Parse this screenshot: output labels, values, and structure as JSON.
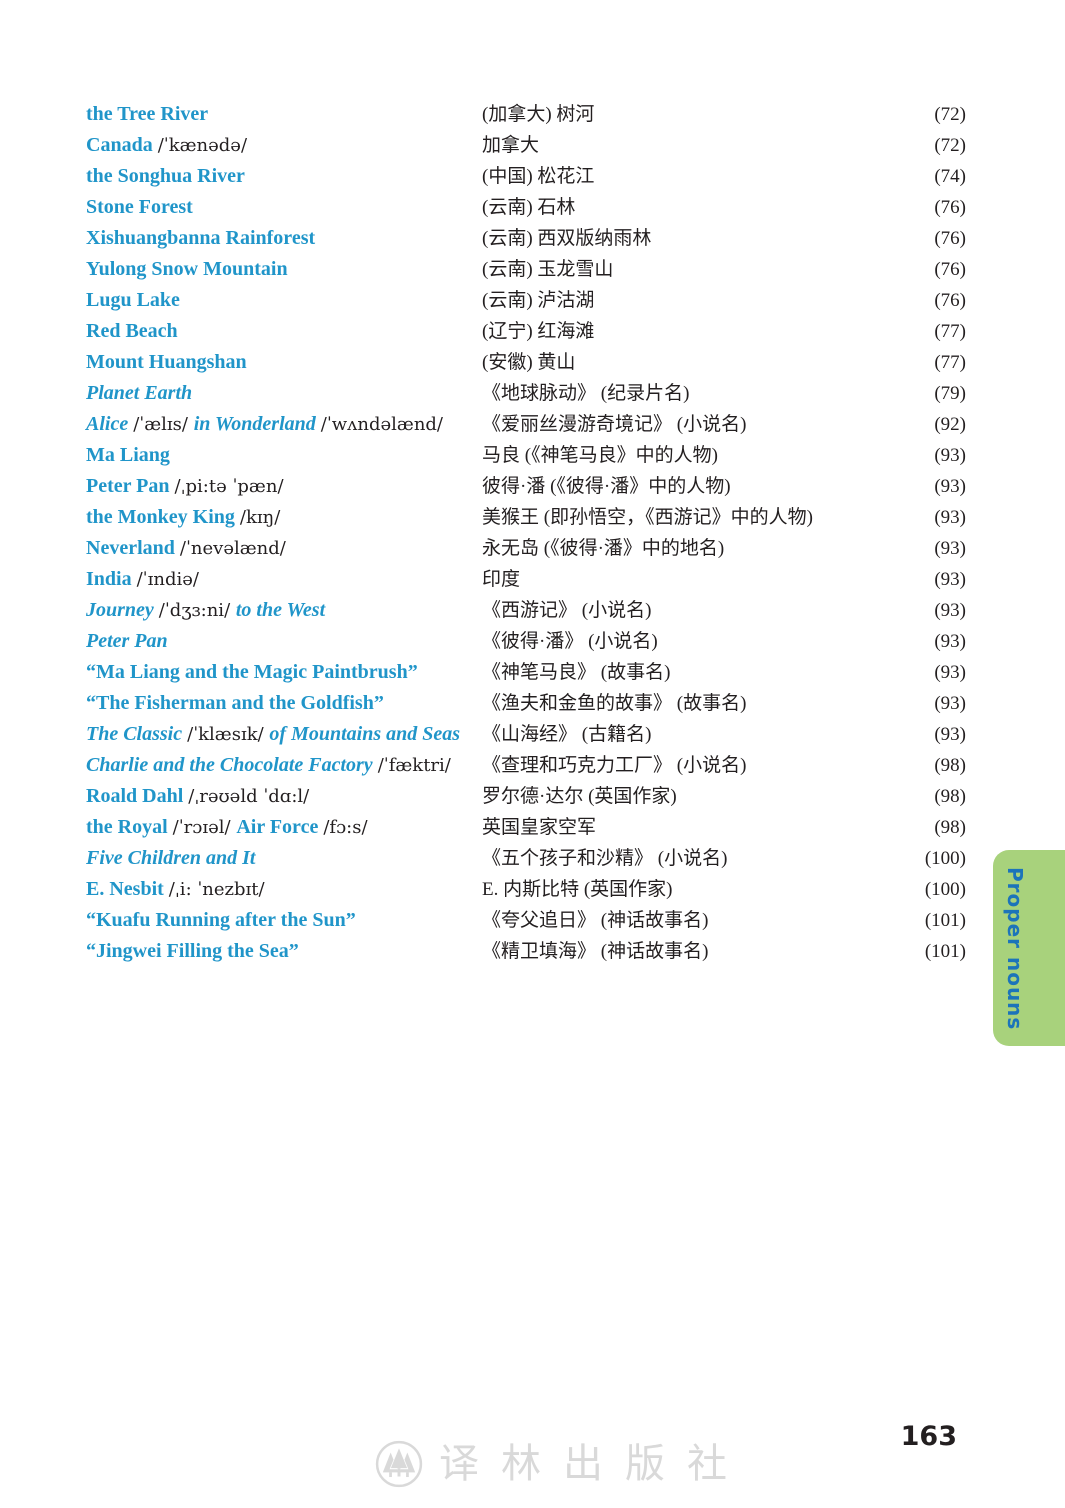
{
  "page": {
    "number": "163",
    "side_tab": {
      "label": "Proper nouns"
    },
    "watermark": {
      "logo_icon": "pine-trees-circle-logo",
      "text": "译林出版社"
    }
  },
  "colors": {
    "entry_blue": "#2095c9",
    "text_black": "#231f20",
    "tab_green": "#a8d27c",
    "tab_text_blue": "#1c74ba",
    "watermark_gray": "#d9d9d9"
  },
  "glossary": {
    "entries": [
      {
        "en": [
          [
            "n",
            "the Tree River"
          ]
        ],
        "cn": "(加拿大) 树河",
        "page": "(72)"
      },
      {
        "en": [
          [
            "n",
            "Canada "
          ],
          [
            "p",
            "/ˈkænədə/"
          ]
        ],
        "cn": "加拿大",
        "page": "(72)"
      },
      {
        "en": [
          [
            "n",
            "the Songhua River"
          ]
        ],
        "cn": "(中国) 松花江",
        "page": "(74)"
      },
      {
        "en": [
          [
            "n",
            "Stone Forest"
          ]
        ],
        "cn": "(云南) 石林",
        "page": "(76)"
      },
      {
        "en": [
          [
            "n",
            "Xishuangbanna Rainforest"
          ]
        ],
        "cn": "(云南) 西双版纳雨林",
        "page": "(76)"
      },
      {
        "en": [
          [
            "n",
            "Yulong Snow Mountain"
          ]
        ],
        "cn": "(云南) 玉龙雪山",
        "page": "(76)"
      },
      {
        "en": [
          [
            "n",
            "Lugu Lake"
          ]
        ],
        "cn": "(云南) 泸沽湖",
        "page": "(76)"
      },
      {
        "en": [
          [
            "n",
            "Red Beach"
          ]
        ],
        "cn": "(辽宁) 红海滩",
        "page": "(77)"
      },
      {
        "en": [
          [
            "n",
            "Mount Huangshan"
          ]
        ],
        "cn": "(安徽) 黄山",
        "page": "(77)"
      },
      {
        "en": [
          [
            "i",
            "Planet Earth"
          ]
        ],
        "cn": "《地球脉动》 (纪录片名)",
        "page": "(79)"
      },
      {
        "en": [
          [
            "i",
            "Alice "
          ],
          [
            "p",
            "/ˈælɪs/ "
          ],
          [
            "i",
            "in Wonderland "
          ],
          [
            "p",
            "/ˈwʌndəlænd/"
          ]
        ],
        "cn": "《爱丽丝漫游奇境记》 (小说名)",
        "page": "(92)"
      },
      {
        "en": [
          [
            "n",
            "Ma Liang"
          ]
        ],
        "cn": "马良 (《神笔马良》中的人物)",
        "page": "(93)"
      },
      {
        "en": [
          [
            "n",
            "Peter Pan "
          ],
          [
            "p",
            "/ˌpi:tə ˈpæn/"
          ]
        ],
        "cn": "彼得·潘 (《彼得·潘》中的人物)",
        "page": "(93)"
      },
      {
        "en": [
          [
            "n",
            "the Monkey King "
          ],
          [
            "p",
            "/kɪŋ/"
          ]
        ],
        "cn": "美猴王 (即孙悟空，《西游记》中的人物)",
        "page": "(93)"
      },
      {
        "en": [
          [
            "n",
            "Neverland "
          ],
          [
            "p",
            "/ˈnevəlænd/"
          ]
        ],
        "cn": "永无岛 (《彼得·潘》中的地名)",
        "page": "(93)"
      },
      {
        "en": [
          [
            "n",
            "India "
          ],
          [
            "p",
            "/ˈɪndiə/"
          ]
        ],
        "cn": "印度",
        "page": "(93)"
      },
      {
        "en": [
          [
            "i",
            "Journey "
          ],
          [
            "p",
            "/ˈdʒɜ:ni/ "
          ],
          [
            "i",
            "to the West"
          ]
        ],
        "cn": "《西游记》 (小说名)",
        "page": "(93)"
      },
      {
        "en": [
          [
            "i",
            "Peter Pan"
          ]
        ],
        "cn": "《彼得·潘》 (小说名)",
        "page": "(93)"
      },
      {
        "en": [
          [
            "n",
            "“Ma Liang and the Magic Paintbrush”"
          ]
        ],
        "cn": "《神笔马良》 (故事名)",
        "page": "(93)"
      },
      {
        "en": [
          [
            "n",
            "“The Fisherman and the Goldfish”"
          ]
        ],
        "cn": "《渔夫和金鱼的故事》 (故事名)",
        "page": "(93)"
      },
      {
        "en": [
          [
            "i",
            "The Classic "
          ],
          [
            "p",
            "/ˈklæsɪk/ "
          ],
          [
            "i",
            "of Mountains and Seas"
          ]
        ],
        "cn": "《山海经》 (古籍名)",
        "page": "(93)"
      },
      {
        "en": [
          [
            "i",
            "Charlie and the Chocolate Factory "
          ],
          [
            "p",
            "/ˈfæktri/"
          ]
        ],
        "cn": "《查理和巧克力工厂》 (小说名)",
        "page": "(98)"
      },
      {
        "en": [
          [
            "n",
            "Roald Dahl "
          ],
          [
            "p",
            "/ˌrəʊəld ˈdɑ:l/"
          ]
        ],
        "cn": "罗尔德·达尔 (英国作家)",
        "page": "(98)"
      },
      {
        "en": [
          [
            "n",
            "the Royal "
          ],
          [
            "p",
            "/ˈrɔɪəl/ "
          ],
          [
            "n",
            "Air Force "
          ],
          [
            "p",
            "/fɔ:s/"
          ]
        ],
        "cn": "英国皇家空军",
        "page": "(98)"
      },
      {
        "en": [
          [
            "i",
            "Five Children and It"
          ]
        ],
        "cn": "《五个孩子和沙精》 (小说名)",
        "page": "(100)"
      },
      {
        "en": [
          [
            "n",
            "E. Nesbit "
          ],
          [
            "p",
            "/ˌi: ˈnezbɪt/"
          ]
        ],
        "cn": "E. 内斯比特 (英国作家)",
        "page": "(100)"
      },
      {
        "en": [
          [
            "n",
            "“Kuafu Running after the Sun”"
          ]
        ],
        "cn": "《夸父追日》 (神话故事名)",
        "page": "(101)"
      },
      {
        "en": [
          [
            "n",
            "“Jingwei Filling the Sea”"
          ]
        ],
        "cn": "《精卫填海》 (神话故事名)",
        "page": "(101)"
      }
    ]
  }
}
